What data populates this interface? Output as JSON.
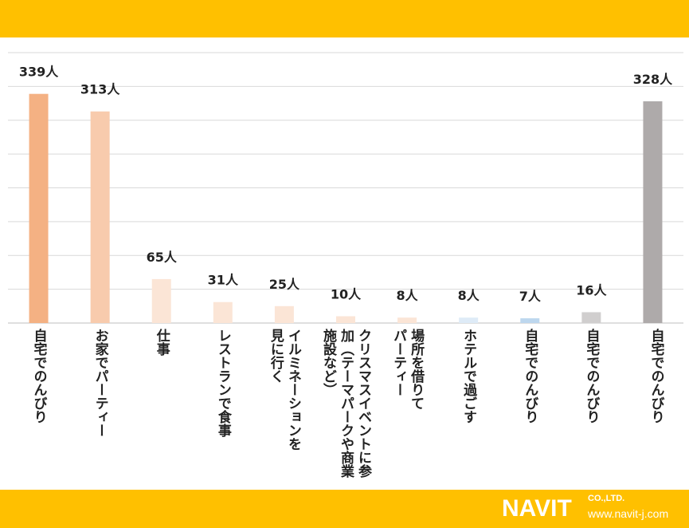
{
  "chart_data": {
    "type": "bar",
    "categories": [
      "自宅でのんびり",
      "お家でパーティー",
      "仕事",
      "レストランで食事",
      "イルミネーションを\n見に行く",
      "クリスマスイベントに参\n加（テーマパークや商業\n施設など）",
      "場所を借りて\nパーティー",
      "ホテルで過ごす",
      "自宅でのんびり",
      "自宅でのんびり",
      "自宅でのんびり"
    ],
    "values": [
      339,
      313,
      65,
      31,
      25,
      10,
      8,
      8,
      7,
      16,
      328
    ],
    "data_labels": [
      "339人",
      "313人",
      "65人",
      "31人",
      "25人",
      "10人",
      "8人",
      "8人",
      "7人",
      "16人",
      "328人"
    ],
    "colors": [
      "#F4B183",
      "#F8CBAD",
      "#FBE5D6",
      "#FBE5D6",
      "#FBE5D6",
      "#FBE5D6",
      "#FBE5D6",
      "#DEEBF7",
      "#BDD7EE",
      "#D0CECE",
      "#AEAAAA"
    ],
    "ylim": [
      0,
      400
    ],
    "grid": true,
    "title": "",
    "xlabel": "",
    "ylabel": ""
  },
  "brand": {
    "logo": "NAVIT",
    "company": "CO.,LTD.",
    "url": "www.navit-j.com",
    "accent": "#FFC000"
  }
}
